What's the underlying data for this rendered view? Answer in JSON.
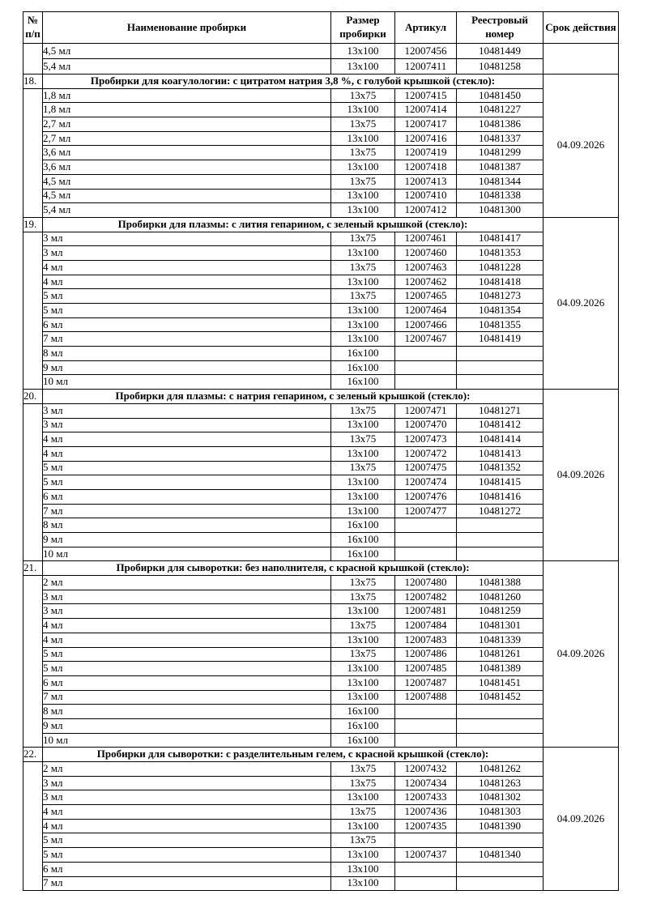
{
  "table": {
    "headers": {
      "num": "№\nп/п",
      "name": "Наименование пробирки",
      "size": "Размер пробирки",
      "article": "Артикул",
      "reg": "Реестровый номер",
      "validity": "Срок действия"
    },
    "continuation": {
      "num": "",
      "validity": "",
      "rows": [
        {
          "name": "4,5 мл",
          "size": "13x100",
          "article": "12007456",
          "reg": "10481449"
        },
        {
          "name": "5,4 мл",
          "size": "13x100",
          "article": "12007411",
          "reg": "10481258"
        }
      ]
    },
    "sections": [
      {
        "num": "18.",
        "title": "Пробирки для коагулологии: с цитратом натрия 3,8 %, с голубой крышкой (стекло):",
        "validity": "04.09.2026",
        "rows": [
          {
            "name": "1,8 мл",
            "size": "13x75",
            "article": "12007415",
            "reg": "10481450"
          },
          {
            "name": "1,8 мл",
            "size": "13x100",
            "article": "12007414",
            "reg": "10481227"
          },
          {
            "name": "2,7 мл",
            "size": "13x75",
            "article": "12007417",
            "reg": "10481386"
          },
          {
            "name": "2,7 мл",
            "size": "13x100",
            "article": "12007416",
            "reg": "10481337"
          },
          {
            "name": "3,6 мл",
            "size": "13x75",
            "article": "12007419",
            "reg": "10481299"
          },
          {
            "name": "3,6 мл",
            "size": "13x100",
            "article": "12007418",
            "reg": "10481387"
          },
          {
            "name": "4,5 мл",
            "size": "13x75",
            "article": "12007413",
            "reg": "10481344"
          },
          {
            "name": "4,5 мл",
            "size": "13x100",
            "article": "12007410",
            "reg": "10481338"
          },
          {
            "name": "5,4 мл",
            "size": "13x100",
            "article": "12007412",
            "reg": "10481300"
          }
        ]
      },
      {
        "num": "19.",
        "title": "Пробирки для плазмы: с лития гепарином, с зеленый крышкой (стекло):",
        "validity": "04.09.2026",
        "rows": [
          {
            "name": "3 мл",
            "size": "13x75",
            "article": "12007461",
            "reg": "10481417"
          },
          {
            "name": "3 мл",
            "size": "13x100",
            "article": "12007460",
            "reg": "10481353"
          },
          {
            "name": "4 мл",
            "size": "13x75",
            "article": "12007463",
            "reg": "10481228"
          },
          {
            "name": "4 мл",
            "size": "13x100",
            "article": "12007462",
            "reg": "10481418"
          },
          {
            "name": "5 мл",
            "size": "13x75",
            "article": "12007465",
            "reg": "10481273"
          },
          {
            "name": "5 мл",
            "size": "13x100",
            "article": "12007464",
            "reg": "10481354"
          },
          {
            "name": "6 мл",
            "size": "13x100",
            "article": "12007466",
            "reg": "10481355"
          },
          {
            "name": "7 мл",
            "size": "13x100",
            "article": "12007467",
            "reg": "10481419"
          },
          {
            "name": "8 мл",
            "size": "16x100",
            "article": "",
            "reg": ""
          },
          {
            "name": "9 мл",
            "size": "16x100",
            "article": "",
            "reg": ""
          },
          {
            "name": "10 мл",
            "size": "16x100",
            "article": "",
            "reg": ""
          }
        ]
      },
      {
        "num": "20.",
        "title": "Пробирки для плазмы: с натрия гепарином, с зеленый крышкой (стекло):",
        "validity": "04.09.2026",
        "rows": [
          {
            "name": "3 мл",
            "size": "13x75",
            "article": "12007471",
            "reg": "10481271"
          },
          {
            "name": "3 мл",
            "size": "13x100",
            "article": "12007470",
            "reg": "10481412"
          },
          {
            "name": "4 мл",
            "size": "13x75",
            "article": "12007473",
            "reg": "10481414"
          },
          {
            "name": "4 мл",
            "size": "13x100",
            "article": "12007472",
            "reg": "10481413"
          },
          {
            "name": "5 мл",
            "size": "13x75",
            "article": "12007475",
            "reg": "10481352"
          },
          {
            "name": "5 мл",
            "size": "13x100",
            "article": "12007474",
            "reg": "10481415"
          },
          {
            "name": "6 мл",
            "size": "13x100",
            "article": "12007476",
            "reg": "10481416"
          },
          {
            "name": "7 мл",
            "size": "13x100",
            "article": "12007477",
            "reg": "10481272"
          },
          {
            "name": "8 мл",
            "size": "16x100",
            "article": "",
            "reg": ""
          },
          {
            "name": "9 мл",
            "size": "16x100",
            "article": "",
            "reg": ""
          },
          {
            "name": "10 мл",
            "size": "16x100",
            "article": "",
            "reg": ""
          }
        ]
      },
      {
        "num": "21.",
        "title": "Пробирки для сыворотки: без наполнителя, с красной крышкой (стекло):",
        "validity": "04.09.2026",
        "rows": [
          {
            "name": "2 мл",
            "size": "13x75",
            "article": "12007480",
            "reg": "10481388"
          },
          {
            "name": "3 мл",
            "size": "13x75",
            "article": "12007482",
            "reg": "10481260"
          },
          {
            "name": "3 мл",
            "size": "13x100",
            "article": "12007481",
            "reg": "10481259"
          },
          {
            "name": "4 мл",
            "size": "13x75",
            "article": "12007484",
            "reg": "10481301"
          },
          {
            "name": "4 мл",
            "size": "13x100",
            "article": "12007483",
            "reg": "10481339"
          },
          {
            "name": "5 мл",
            "size": "13x75",
            "article": "12007486",
            "reg": "10481261"
          },
          {
            "name": "5 мл",
            "size": "13x100",
            "article": "12007485",
            "reg": "10481389"
          },
          {
            "name": "6 мл",
            "size": "13x100",
            "article": "12007487",
            "reg": "10481451"
          },
          {
            "name": "7 мл",
            "size": "13x100",
            "article": "12007488",
            "reg": "10481452"
          },
          {
            "name": "8 мл",
            "size": "16x100",
            "article": "",
            "reg": ""
          },
          {
            "name": "9 мл",
            "size": "16x100",
            "article": "",
            "reg": ""
          },
          {
            "name": "10 мл",
            "size": "16x100",
            "article": "",
            "reg": ""
          }
        ]
      },
      {
        "num": "22.",
        "title": "Пробирки для сыворотки: с разделительным гелем, с красной крышкой (стекло):",
        "validity": "04.09.2026",
        "rows": [
          {
            "name": "2 мл",
            "size": "13x75",
            "article": "12007432",
            "reg": "10481262"
          },
          {
            "name": "3 мл",
            "size": "13x75",
            "article": "12007434",
            "reg": "10481263"
          },
          {
            "name": "3 мл",
            "size": "13x100",
            "article": "12007433",
            "reg": "10481302"
          },
          {
            "name": "4 мл",
            "size": "13x75",
            "article": "12007436",
            "reg": "10481303"
          },
          {
            "name": "4 мл",
            "size": "13x100",
            "article": "12007435",
            "reg": "10481390"
          },
          {
            "name": "5 мл",
            "size": "13x75",
            "article": "",
            "reg": ""
          },
          {
            "name": "5 мл",
            "size": "13x100",
            "article": "12007437",
            "reg": "10481340"
          },
          {
            "name": "6 мл",
            "size": "13x100",
            "article": "",
            "reg": ""
          },
          {
            "name": "7 мл",
            "size": "13x100",
            "article": "",
            "reg": ""
          }
        ]
      }
    ]
  }
}
